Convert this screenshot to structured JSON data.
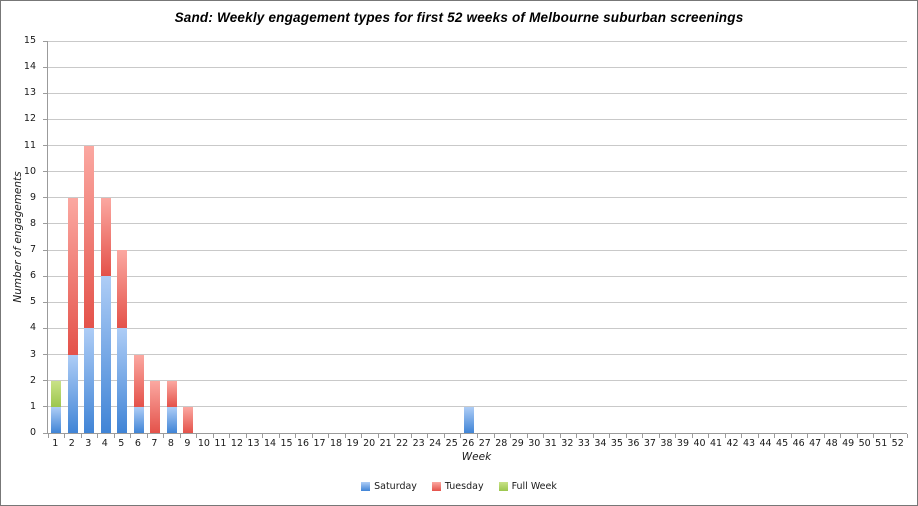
{
  "chart_data": {
    "type": "bar",
    "stacked": true,
    "title": "Sand: Weekly engagement types for first 52 weeks of Melbourne suburban screenings",
    "xlabel": "Week",
    "ylabel": "Number of engagements",
    "ylim": [
      0,
      15
    ],
    "y_ticks": [
      0,
      1,
      2,
      3,
      4,
      5,
      6,
      7,
      8,
      9,
      10,
      11,
      12,
      13,
      14,
      15
    ],
    "categories": [
      "1",
      "2",
      "3",
      "4",
      "5",
      "6",
      "7",
      "8",
      "9",
      "10",
      "11",
      "12",
      "13",
      "14",
      "15",
      "16",
      "17",
      "18",
      "19",
      "20",
      "21",
      "22",
      "23",
      "24",
      "25",
      "26",
      "27",
      "28",
      "29",
      "30",
      "31",
      "32",
      "33",
      "34",
      "35",
      "36",
      "37",
      "38",
      "39",
      "40",
      "41",
      "42",
      "43",
      "44",
      "45",
      "46",
      "47",
      "48",
      "49",
      "50",
      "51",
      "52"
    ],
    "grid": true,
    "legend_position": "bottom",
    "series": [
      {
        "name": "Saturday",
        "color_top": "#aecdf6",
        "color_bottom": "#4084d6",
        "values": [
          1,
          3,
          4,
          6,
          4,
          1,
          0,
          1,
          0,
          0,
          0,
          0,
          0,
          0,
          0,
          0,
          0,
          0,
          0,
          0,
          0,
          0,
          0,
          0,
          0,
          1,
          0,
          0,
          0,
          0,
          0,
          0,
          0,
          0,
          0,
          0,
          0,
          0,
          0,
          0,
          0,
          0,
          0,
          0,
          0,
          0,
          0,
          0,
          0,
          0,
          0,
          0
        ]
      },
      {
        "name": "Tuesday",
        "color_top": "#fba8a1",
        "color_bottom": "#e4524a",
        "values": [
          0,
          6,
          7,
          3,
          3,
          2,
          2,
          1,
          1,
          0,
          0,
          0,
          0,
          0,
          0,
          0,
          0,
          0,
          0,
          0,
          0,
          0,
          0,
          0,
          0,
          0,
          0,
          0,
          0,
          0,
          0,
          0,
          0,
          0,
          0,
          0,
          0,
          0,
          0,
          0,
          0,
          0,
          0,
          0,
          0,
          0,
          0,
          0,
          0,
          0,
          0,
          0
        ]
      },
      {
        "name": "Full Week",
        "color_top": "#c9e287",
        "color_bottom": "#9cc64e",
        "values": [
          1,
          0,
          0,
          0,
          0,
          0,
          0,
          0,
          0,
          0,
          0,
          0,
          0,
          0,
          0,
          0,
          0,
          0,
          0,
          0,
          0,
          0,
          0,
          0,
          0,
          0,
          0,
          0,
          0,
          0,
          0,
          0,
          0,
          0,
          0,
          0,
          0,
          0,
          0,
          0,
          0,
          0,
          0,
          0,
          0,
          0,
          0,
          0,
          0,
          0,
          0,
          0
        ]
      }
    ]
  },
  "colors": {
    "gridline": "#c9c9c9",
    "axis": "#9b9b9b",
    "text": "#1a1a1a",
    "frame": "#777777",
    "background": "#ffffff"
  }
}
